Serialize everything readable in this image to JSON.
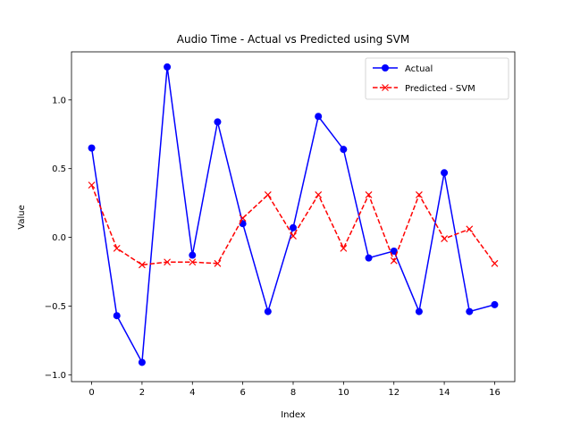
{
  "chart_data": {
    "type": "line",
    "title": "Audio Time - Actual vs Predicted using SVM",
    "xlabel": "Index",
    "ylabel": "Value",
    "x": [
      0,
      1,
      2,
      3,
      4,
      5,
      6,
      7,
      8,
      9,
      10,
      11,
      12,
      13,
      14,
      15,
      16
    ],
    "xlim": [
      -0.8,
      16.8
    ],
    "ylim": [
      -1.05,
      1.35
    ],
    "xticks": [
      0,
      2,
      4,
      6,
      8,
      10,
      12,
      14,
      16
    ],
    "yticks": [
      -1.0,
      -0.5,
      0.0,
      0.5,
      1.0
    ],
    "ytick_labels": [
      "−1.0",
      "−0.5",
      "0.0",
      "0.5",
      "1.0"
    ],
    "grid": false,
    "legend_position": "top-right",
    "series": [
      {
        "name": "Actual",
        "color": "#0000ff",
        "line_style": "solid",
        "marker": "circle",
        "values": [
          0.65,
          -0.57,
          -0.91,
          1.24,
          -0.13,
          0.84,
          0.1,
          -0.54,
          0.07,
          0.88,
          0.64,
          -0.15,
          -0.1,
          -0.54,
          0.47,
          -0.54,
          -0.49
        ]
      },
      {
        "name": "Predicted - SVM",
        "color": "#ff0000",
        "line_style": "dashed",
        "marker": "x",
        "values": [
          0.38,
          -0.08,
          -0.2,
          -0.18,
          -0.18,
          -0.19,
          0.14,
          0.31,
          0.01,
          0.31,
          -0.08,
          0.31,
          -0.17,
          0.31,
          -0.01,
          0.06,
          -0.19
        ]
      }
    ]
  }
}
